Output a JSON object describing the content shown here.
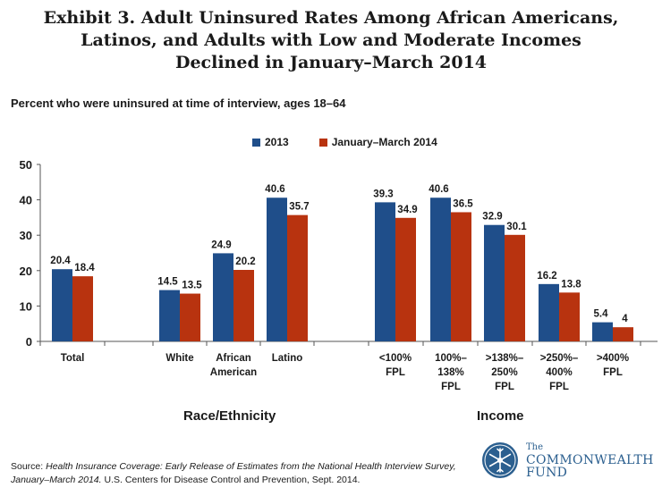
{
  "title_lines": [
    "Exhibit 3. Adult Uninsured Rates Among African Americans,",
    "Latinos, and Adults with Low and Moderate Incomes",
    "Declined in January–March 2014"
  ],
  "subtitle": "Percent who were uninsured at time of interview, ages 18–64",
  "colors": {
    "series_2013": "#1f4e8a",
    "series_2014": "#b8330f"
  },
  "chart_data": {
    "type": "bar",
    "title": "Exhibit 3. Adult Uninsured Rates Among African Americans, Latinos, and Adults with Low and Moderate Incomes Declined in January–March 2014",
    "ylabel": "Percent who were uninsured at time of interview, ages 18–64",
    "ylim": [
      0,
      50
    ],
    "yticks": [
      0,
      10,
      20,
      30,
      40,
      50
    ],
    "legend_position": "top-center",
    "categories": [
      {
        "label": [
          "Total"
        ]
      },
      {
        "label": [
          "White"
        ]
      },
      {
        "label": [
          "African",
          "American"
        ]
      },
      {
        "label": [
          "Latino"
        ]
      },
      {
        "label": [
          "<100%",
          "FPL"
        ]
      },
      {
        "label": [
          "100%–",
          "138%",
          "FPL"
        ]
      },
      {
        "label": [
          ">138%–",
          "250%",
          "FPL"
        ]
      },
      {
        "label": [
          ">250%–",
          "400%",
          "FPL"
        ]
      },
      {
        "label": [
          ">400%",
          "FPL"
        ]
      }
    ],
    "series": [
      {
        "name": "2013",
        "values": [
          20.4,
          14.5,
          24.9,
          40.6,
          39.3,
          40.6,
          32.9,
          16.2,
          5.4
        ],
        "labels": [
          "20.4",
          "14.5",
          "24.9",
          "40.6",
          "39.3",
          "40.6",
          "32.9",
          "16.2",
          "5.4"
        ]
      },
      {
        "name": "January–March 2014",
        "values": [
          18.4,
          13.5,
          20.2,
          35.7,
          34.9,
          36.5,
          30.1,
          13.8,
          4
        ],
        "labels": [
          "18.4",
          "13.5",
          "20.2",
          "35.7",
          "34.9",
          "36.5",
          "30.1",
          "13.8",
          "4"
        ]
      }
    ],
    "groups": [
      {
        "name": "Race/Ethnicity"
      },
      {
        "name": "Income"
      }
    ]
  },
  "source": {
    "prefix": "Source: ",
    "italic": "Health Insurance Coverage: Early Release of Estimates from the National Health Interview Survey, January–March 2014.",
    "suffix": " U.S. Centers for Disease Control and Prevention, Sept. 2014."
  },
  "logo": {
    "the": "The",
    "line1": "COMMONWEALTH",
    "line2": "FUND"
  }
}
